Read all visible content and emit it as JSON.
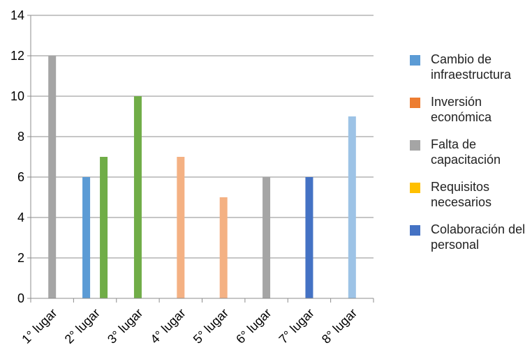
{
  "chart_data": {
    "type": "bar",
    "categories": [
      "1° lugar",
      "2° lugar",
      "3° lugar",
      "4° lugar",
      "5° lugar",
      "6° lugar",
      "7° lugar",
      "8° lugar"
    ],
    "series": [
      {
        "name": "Cambio de infraestructura",
        "color": "#5b9bd5",
        "values": [
          null,
          6,
          null,
          null,
          null,
          null,
          null,
          null
        ]
      },
      {
        "name": "Inversión económica",
        "color": "#ed7d31",
        "values": [
          null,
          null,
          null,
          null,
          null,
          null,
          null,
          null
        ]
      },
      {
        "name": "Falta de capacitación",
        "color": "#a5a5a5",
        "values": [
          12,
          null,
          null,
          null,
          null,
          6,
          null,
          null
        ]
      },
      {
        "name": "Requisitos necesarios",
        "color": "#ffc000",
        "values": [
          null,
          null,
          null,
          null,
          null,
          null,
          null,
          null
        ]
      },
      {
        "name": "Colaboración del personal",
        "color": "#4472c4",
        "values": [
          null,
          null,
          null,
          null,
          null,
          null,
          6,
          null
        ]
      },
      {
        "name": "",
        "color": "#70ad47",
        "values": [
          null,
          7,
          10,
          null,
          null,
          null,
          null,
          null
        ]
      },
      {
        "name": "",
        "color": "#f4b183",
        "values": [
          null,
          null,
          null,
          7,
          5,
          null,
          null,
          null
        ]
      },
      {
        "name": "",
        "color": "#9dc3e6",
        "values": [
          null,
          null,
          null,
          null,
          null,
          null,
          null,
          9
        ]
      }
    ],
    "yticks": [
      0,
      2,
      4,
      6,
      8,
      10,
      12,
      14
    ],
    "ylim": [
      0,
      14
    ],
    "grid": true,
    "legend_position": "right"
  },
  "legend": [
    {
      "label": "Cambio de infraestructura",
      "color": "#5b9bd5"
    },
    {
      "label": "Inversión económica",
      "color": "#ed7d31"
    },
    {
      "label": "Falta de capacitación",
      "color": "#a5a5a5"
    },
    {
      "label": "Requisitos necesarios",
      "color": "#ffc000"
    },
    {
      "label": "Colaboración del personal",
      "color": "#4472c4"
    }
  ]
}
